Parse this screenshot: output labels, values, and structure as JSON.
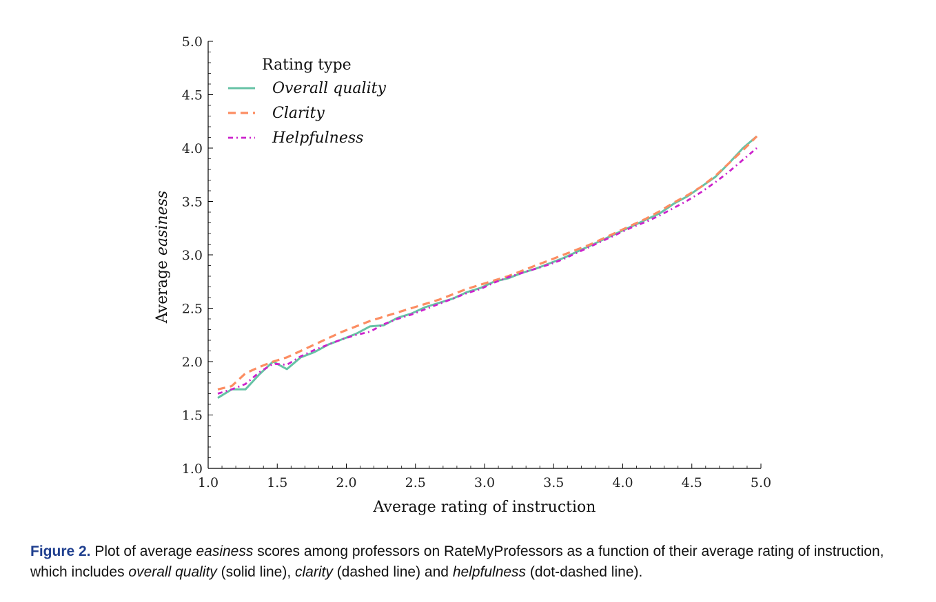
{
  "chart_data": {
    "type": "line",
    "title": "",
    "xlabel": "Average rating of instruction",
    "ylabel_prefix": "Average ",
    "ylabel_emph": "easiness",
    "xlim": [
      1.0,
      5.0
    ],
    "ylim": [
      1.0,
      5.0
    ],
    "xticks": [
      "1.0",
      "1.5",
      "2.0",
      "2.5",
      "3.0",
      "3.5",
      "4.0",
      "4.5",
      "5.0"
    ],
    "yticks": [
      "1.0",
      "1.5",
      "2.0",
      "2.5",
      "3.0",
      "3.5",
      "4.0",
      "4.5",
      "5.0"
    ],
    "grid": false,
    "legend": {
      "title": "Rating type",
      "position": "top-left"
    },
    "series": [
      {
        "name": "Overall quality",
        "color": "#66c2a5",
        "style": "solid",
        "x": [
          1.07,
          1.17,
          1.27,
          1.37,
          1.47,
          1.57,
          1.67,
          1.77,
          1.87,
          1.97,
          2.07,
          2.17,
          2.27,
          2.37,
          2.47,
          2.57,
          2.67,
          2.77,
          2.87,
          2.97,
          3.07,
          3.17,
          3.27,
          3.37,
          3.47,
          3.57,
          3.67,
          3.77,
          3.87,
          3.97,
          4.07,
          4.17,
          4.27,
          4.37,
          4.47,
          4.57,
          4.67,
          4.77,
          4.87,
          4.97
        ],
        "y": [
          1.66,
          1.74,
          1.74,
          1.88,
          2.0,
          1.93,
          2.04,
          2.09,
          2.16,
          2.21,
          2.26,
          2.33,
          2.34,
          2.41,
          2.45,
          2.51,
          2.55,
          2.59,
          2.65,
          2.69,
          2.75,
          2.78,
          2.83,
          2.87,
          2.92,
          2.97,
          3.03,
          3.09,
          3.15,
          3.21,
          3.27,
          3.33,
          3.39,
          3.48,
          3.55,
          3.64,
          3.73,
          3.86,
          4.0,
          4.11
        ]
      },
      {
        "name": "Clarity",
        "color": "#fc8d62",
        "style": "dashed",
        "x": [
          1.07,
          1.17,
          1.27,
          1.37,
          1.47,
          1.57,
          1.67,
          1.77,
          1.87,
          1.97,
          2.07,
          2.17,
          2.27,
          2.37,
          2.47,
          2.57,
          2.67,
          2.77,
          2.87,
          2.97,
          3.07,
          3.17,
          3.27,
          3.37,
          3.47,
          3.57,
          3.67,
          3.77,
          3.87,
          3.97,
          4.07,
          4.17,
          4.27,
          4.37,
          4.47,
          4.57,
          4.67,
          4.77,
          4.87,
          4.97
        ],
        "y": [
          1.74,
          1.77,
          1.89,
          1.95,
          2.0,
          2.04,
          2.1,
          2.16,
          2.22,
          2.28,
          2.33,
          2.38,
          2.42,
          2.46,
          2.5,
          2.54,
          2.58,
          2.63,
          2.68,
          2.72,
          2.76,
          2.8,
          2.85,
          2.9,
          2.95,
          3.0,
          3.05,
          3.1,
          3.16,
          3.22,
          3.28,
          3.34,
          3.41,
          3.49,
          3.56,
          3.64,
          3.74,
          3.86,
          3.98,
          4.11
        ]
      },
      {
        "name": "Helpfulness",
        "color": "#cc22cc",
        "style": "dashdot",
        "x": [
          1.07,
          1.17,
          1.27,
          1.37,
          1.47,
          1.57,
          1.67,
          1.77,
          1.87,
          1.97,
          2.07,
          2.17,
          2.27,
          2.37,
          2.47,
          2.57,
          2.67,
          2.77,
          2.87,
          2.97,
          3.07,
          3.17,
          3.27,
          3.37,
          3.47,
          3.57,
          3.67,
          3.77,
          3.87,
          3.97,
          4.07,
          4.17,
          4.27,
          4.37,
          4.47,
          4.57,
          4.67,
          4.77,
          4.87,
          4.97
        ],
        "y": [
          1.7,
          1.74,
          1.79,
          1.9,
          1.98,
          1.97,
          2.05,
          2.11,
          2.16,
          2.21,
          2.25,
          2.28,
          2.35,
          2.4,
          2.44,
          2.49,
          2.54,
          2.59,
          2.64,
          2.68,
          2.74,
          2.79,
          2.83,
          2.87,
          2.91,
          2.96,
          3.02,
          3.08,
          3.14,
          3.2,
          3.26,
          3.31,
          3.37,
          3.44,
          3.51,
          3.59,
          3.68,
          3.78,
          3.89,
          4.0
        ]
      }
    ]
  },
  "caption": {
    "label": "Figure 2.",
    "t1": " Plot of average ",
    "e1": "easiness",
    "t2": " scores among professors on RateMyProfessors as a function of their average rating of instruction, which includes ",
    "e2": "overall quality",
    "t3": " (solid line), ",
    "e3": "clarity",
    "t4": " (dashed line) and ",
    "e4": "helpfulness",
    "t5": " (dot-dashed line)."
  }
}
